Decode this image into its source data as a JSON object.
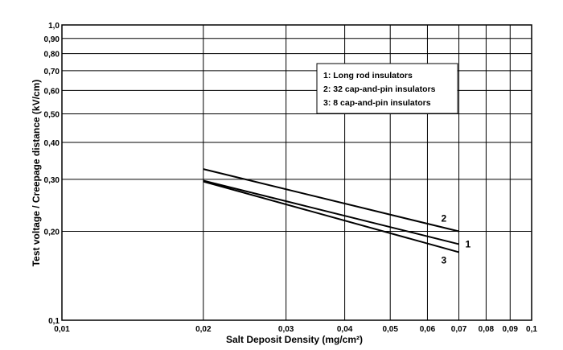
{
  "chart_data": {
    "type": "line",
    "x_scale": "log",
    "y_scale": "log",
    "xlabel": "Salt Deposit Density   (mg/cm²)",
    "ylabel": "Test voltage / Creepage distance   (kV/cm)",
    "xlim": [
      0.01,
      0.1
    ],
    "ylim": [
      0.1,
      1.0
    ],
    "x_ticks": [
      {
        "value": 0.01,
        "label": "0,01"
      },
      {
        "value": 0.02,
        "label": "0,02"
      },
      {
        "value": 0.03,
        "label": "0,03"
      },
      {
        "value": 0.04,
        "label": "0,04"
      },
      {
        "value": 0.05,
        "label": "0,05"
      },
      {
        "value": 0.06,
        "label": "0,06"
      },
      {
        "value": 0.07,
        "label": "0,07"
      },
      {
        "value": 0.08,
        "label": "0,08"
      },
      {
        "value": 0.09,
        "label": "0,09"
      },
      {
        "value": 0.1,
        "label": "0,1"
      }
    ],
    "y_ticks": [
      {
        "value": 0.1,
        "label": "0,1"
      },
      {
        "value": 0.2,
        "label": "0,20"
      },
      {
        "value": 0.3,
        "label": "0,30"
      },
      {
        "value": 0.4,
        "label": "0,40"
      },
      {
        "value": 0.5,
        "label": "0,50"
      },
      {
        "value": 0.6,
        "label": "0,60"
      },
      {
        "value": 0.7,
        "label": "0,70"
      },
      {
        "value": 0.8,
        "label": "0,80"
      },
      {
        "value": 0.9,
        "label": "0,90"
      },
      {
        "value": 1.0,
        "label": "1,0"
      }
    ],
    "grid": true,
    "legend": {
      "placement": "top-right",
      "entries": [
        "1:   Long rod insulators",
        "2:   32 cap-and-pin insulators",
        "3:   8 cap-and-pin insulators"
      ]
    },
    "series": [
      {
        "label": "1",
        "x": [
          0.02,
          0.07
        ],
        "y": [
          0.297,
          0.181
        ]
      },
      {
        "label": "2",
        "x": [
          0.02,
          0.07
        ],
        "y": [
          0.325,
          0.2
        ]
      },
      {
        "label": "3",
        "x": [
          0.02,
          0.07
        ],
        "y": [
          0.295,
          0.17
        ]
      }
    ]
  }
}
